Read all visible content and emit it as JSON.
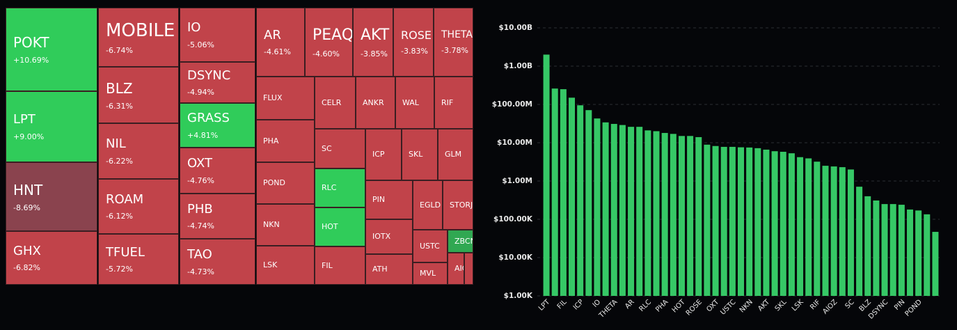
{
  "chart_data": [
    {
      "type": "treemap",
      "items": [
        {
          "name": "POKT",
          "value": 10.69,
          "value_label": "+10.69%",
          "color": "#30cc5a"
        },
        {
          "name": "LPT",
          "value": 9.0,
          "value_label": "+9.00%",
          "color": "#30cc5a"
        },
        {
          "name": "HNT",
          "value": -8.69,
          "value_label": "-8.69%",
          "color": "#8a434e"
        },
        {
          "name": "GHX",
          "value": -6.82,
          "value_label": "-6.82%",
          "color": "#c1434a"
        },
        {
          "name": "MOBILE",
          "value": -6.74,
          "value_label": "-6.74%",
          "color": "#c1434a"
        },
        {
          "name": "BLZ",
          "value": -6.31,
          "value_label": "-6.31%",
          "color": "#c1434a"
        },
        {
          "name": "NIL",
          "value": -6.22,
          "value_label": "-6.22%",
          "color": "#c1434a"
        },
        {
          "name": "ROAM",
          "value": -6.12,
          "value_label": "-6.12%",
          "color": "#c1434a"
        },
        {
          "name": "TFUEL",
          "value": -5.72,
          "value_label": "-5.72%",
          "color": "#c1434a"
        },
        {
          "name": "IO",
          "value": -5.06,
          "value_label": "-5.06%",
          "color": "#c1434a"
        },
        {
          "name": "DSYNC",
          "value": -4.94,
          "value_label": "-4.94%",
          "color": "#c1434a"
        },
        {
          "name": "GRASS",
          "value": 4.81,
          "value_label": "+4.81%",
          "color": "#30cc5a"
        },
        {
          "name": "OXT",
          "value": -4.76,
          "value_label": "-4.76%",
          "color": "#c1434a"
        },
        {
          "name": "PHB",
          "value": -4.74,
          "value_label": "-4.74%",
          "color": "#c1434a"
        },
        {
          "name": "TAO",
          "value": -4.73,
          "value_label": "-4.73%",
          "color": "#c1434a"
        },
        {
          "name": "AR",
          "value": -4.61,
          "value_label": "-4.61%",
          "color": "#c1434a"
        },
        {
          "name": "PEAQ",
          "value": -4.6,
          "value_label": "-4.60%",
          "color": "#c1434a"
        },
        {
          "name": "AKT",
          "value": -3.85,
          "value_label": "-3.85%",
          "color": "#c1434a"
        },
        {
          "name": "ROSE",
          "value": -3.83,
          "value_label": "-3.83%",
          "color": "#c1434a"
        },
        {
          "name": "THETA",
          "value": -3.78,
          "value_label": "-3.78%",
          "color": "#c1434a"
        },
        {
          "name": "FLUX",
          "color": "#c1434a"
        },
        {
          "name": "PHA",
          "color": "#c1434a"
        },
        {
          "name": "POND",
          "color": "#c1434a"
        },
        {
          "name": "NKN",
          "color": "#c1434a"
        },
        {
          "name": "LSK",
          "color": "#c1434a"
        },
        {
          "name": "CELR",
          "color": "#c1434a"
        },
        {
          "name": "ANKR",
          "color": "#c1434a"
        },
        {
          "name": "WAL",
          "color": "#c1434a"
        },
        {
          "name": "RIF",
          "color": "#c1434a"
        },
        {
          "name": "SC",
          "color": "#c1434a"
        },
        {
          "name": "ICP",
          "color": "#c1434a"
        },
        {
          "name": "SKL",
          "color": "#c1434a"
        },
        {
          "name": "GLM",
          "color": "#c1434a"
        },
        {
          "name": "RLC",
          "color": "#30cc5a"
        },
        {
          "name": "HOT",
          "color": "#30cc5a"
        },
        {
          "name": "FIL",
          "color": "#c1434a"
        },
        {
          "name": "PIN",
          "color": "#c1434a"
        },
        {
          "name": "EGLD",
          "color": "#c1434a"
        },
        {
          "name": "STORJ",
          "color": "#c1434a"
        },
        {
          "name": "IOTX",
          "color": "#c1434a"
        },
        {
          "name": "ATH",
          "color": "#c1434a"
        },
        {
          "name": "USTC",
          "color": "#c1434a"
        },
        {
          "name": "ZBCN",
          "color": "#30a852"
        },
        {
          "name": "MVL",
          "color": "#c1434a"
        },
        {
          "name": "AIOZ",
          "color": "#c1434a"
        }
      ]
    },
    {
      "type": "bar",
      "log_scale": true,
      "grid": true,
      "color": "#36c866",
      "categories": [
        "LPT",
        null,
        "FIL",
        null,
        "ICP",
        null,
        "IO",
        null,
        "THETA",
        null,
        "AR",
        null,
        "RLC",
        null,
        "PHA",
        null,
        "HOT",
        null,
        "ROSE",
        null,
        "OXT",
        null,
        "USTC",
        null,
        "NKN",
        null,
        "AKT",
        null,
        "SKL",
        null,
        "LSK",
        null,
        "RIF",
        null,
        "AIOZ",
        null,
        "SC",
        null,
        "BLZ",
        null,
        "DSYNC",
        null,
        "PIN",
        null,
        "POND",
        null,
        null
      ],
      "values": [
        2000000000,
        260000000,
        250000000,
        150000000,
        95000000,
        71000000,
        43000000,
        34000000,
        31000000,
        29000000,
        26000000,
        26000000,
        21000000,
        20000000,
        18000000,
        17000000,
        15000000,
        15000000,
        14000000,
        8900000,
        8200000,
        7800000,
        7800000,
        7600000,
        7500000,
        7200000,
        6600000,
        6000000,
        5800000,
        5300000,
        4200000,
        3900000,
        3200000,
        2500000,
        2400000,
        2300000,
        2000000,
        710000,
        400000,
        310000,
        250000,
        250000,
        240000,
        180000,
        170000,
        135000,
        47000
      ],
      "ylim": [
        1000,
        10000000000
      ],
      "yticks": [
        {
          "value": 1000,
          "label": "$1.00K"
        },
        {
          "value": 10000,
          "label": "$10.00K"
        },
        {
          "value": 100000,
          "label": "$100.00K"
        },
        {
          "value": 1000000,
          "label": "$1.00M"
        },
        {
          "value": 10000000,
          "label": "$10.00M"
        },
        {
          "value": 100000000,
          "label": "$100.00M"
        },
        {
          "value": 1000000000,
          "label": "$1.00B"
        },
        {
          "value": 10000000000,
          "label": "$10.00B"
        }
      ]
    }
  ]
}
